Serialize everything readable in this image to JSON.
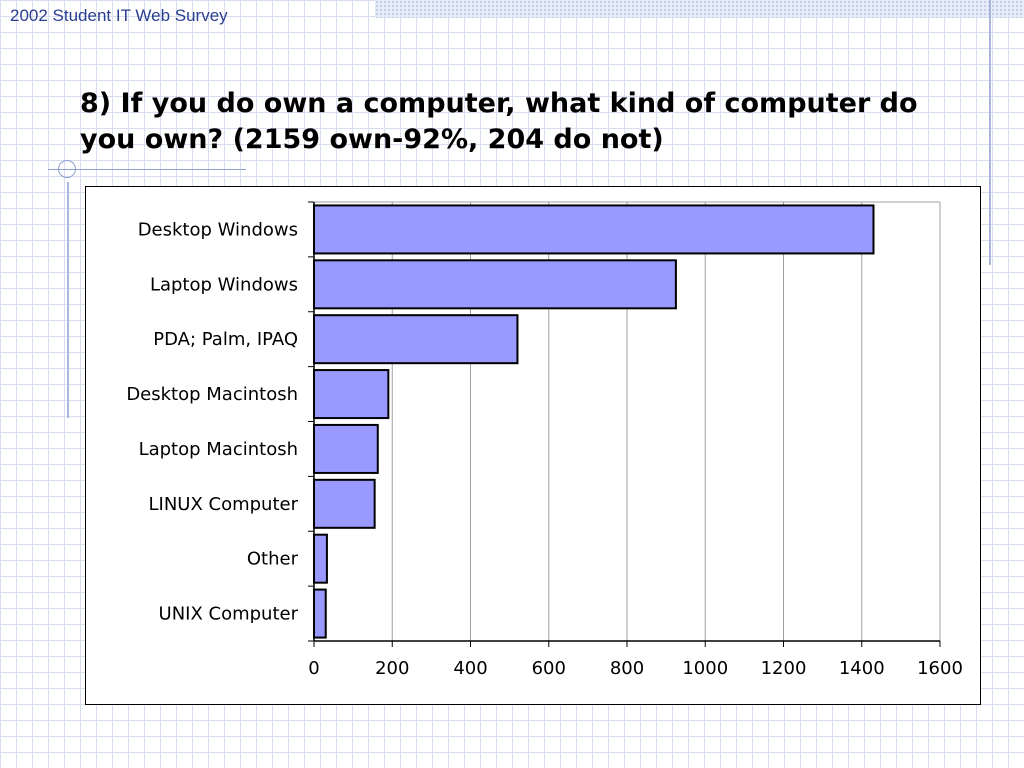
{
  "header": {
    "text": "2002 Student IT Web Survey"
  },
  "slide": {
    "title_bold": "8) If you do own a computer, what kind of computer do you own?",
    "title_normal": "(2159 own-92%, 204 do not)"
  },
  "colors": {
    "bar_fill": "#9999ff",
    "header_text": "#2a3e8f",
    "accent_line": "#a9b7dc"
  },
  "chart_data": {
    "type": "bar",
    "orientation": "horizontal",
    "title": "",
    "xlabel": "",
    "ylabel": "",
    "categories": [
      "Desktop Windows",
      "Laptop Windows",
      "PDA; Palm, IPAQ",
      "Desktop Macintosh",
      "Laptop Macintosh",
      "LINUX Computer",
      "Other",
      "UNIX Computer"
    ],
    "values": [
      1430,
      925,
      520,
      190,
      163,
      155,
      33,
      30
    ],
    "xlim": [
      0,
      1600
    ],
    "xticks": [
      0,
      200,
      400,
      600,
      800,
      1000,
      1200,
      1400,
      1600
    ],
    "grid": true,
    "legend": "none"
  }
}
